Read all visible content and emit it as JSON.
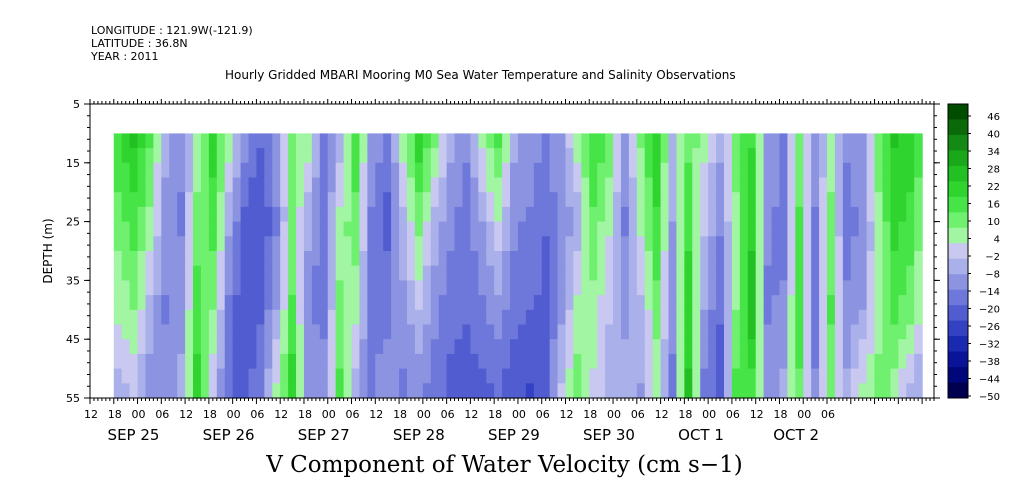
{
  "header": {
    "longitude": "LONGITUDE : 121.9W(-121.9)",
    "latitude": "LATITUDE : 36.8N",
    "year": "YEAR : 2011"
  },
  "chart_data": {
    "type": "heatmap",
    "title": "Hourly Gridded MBARI Mooring M0 Sea Water Temperature and Salinity Observations",
    "xlabel": "V Component of Water Velocity (cm s−1)",
    "ylabel": "DEPTH (m)",
    "ylim": [
      55,
      5
    ],
    "y_ticks": [
      "5",
      "15",
      "25",
      "35",
      "45",
      "55"
    ],
    "x_hour_ticks": [
      "12",
      "18",
      "00",
      "06",
      "12",
      "18",
      "00",
      "06",
      "12",
      "18",
      "00",
      "06",
      "12",
      "18",
      "00",
      "06",
      "12",
      "18",
      "00",
      "06",
      "12",
      "18",
      "00",
      "06",
      "12",
      "18",
      "00",
      "06",
      "12",
      "18",
      "00",
      "06"
    ],
    "x_date_labels": [
      "SEP 25",
      "SEP 26",
      "SEP 27",
      "SEP 28",
      "SEP 29",
      "SEP 30",
      "OCT  1",
      "OCT  2"
    ],
    "data_depth_range_m": [
      10,
      55
    ],
    "data_time_range_hours_from_sep25_12": [
      6,
      210
    ],
    "colorbar": {
      "labels": [
        "46",
        "40",
        "34",
        "28",
        "22",
        "16",
        "10",
        "4",
        "−2",
        "−8",
        "−14",
        "−20",
        "−26",
        "−32",
        "−38",
        "−44",
        "−50"
      ],
      "range": [
        -50,
        50
      ],
      "colors_high_to_low": [
        "#004d00",
        "#0a6a0a",
        "#138a13",
        "#1aa81a",
        "#22c022",
        "#2fd42f",
        "#46e446",
        "#6ff06f",
        "#a2f5a2",
        "#c8c8f0",
        "#aab0ea",
        "#8c94e2",
        "#6e78da",
        "#505cd0",
        "#3242c2",
        "#1a2ab0",
        "#0a1498",
        "#00077a",
        "#000050"
      ]
    },
    "data_columns": [
      {
        "t": 6,
        "v": [
          18,
          10,
          4,
          -4
        ]
      },
      {
        "t": 10,
        "v": [
          24,
          16,
          8,
          -2
        ]
      },
      {
        "t": 14,
        "v": [
          14,
          6,
          -4,
          -10
        ]
      },
      {
        "t": 18,
        "v": [
          -6,
          -10,
          -14,
          -10
        ]
      },
      {
        "t": 22,
        "v": [
          -12,
          -14,
          -10,
          -6
        ]
      },
      {
        "t": 26,
        "v": [
          4,
          10,
          16,
          20
        ]
      },
      {
        "t": 30,
        "v": [
          20,
          16,
          8,
          -2
        ]
      },
      {
        "t": 34,
        "v": [
          4,
          -6,
          -14,
          -18
        ]
      },
      {
        "t": 38,
        "v": [
          -12,
          -20,
          -24,
          -20
        ]
      },
      {
        "t": 42,
        "v": [
          -18,
          -24,
          -20,
          -14
        ]
      },
      {
        "t": 46,
        "v": [
          -10,
          -14,
          -8,
          4
        ]
      },
      {
        "t": 50,
        "v": [
          10,
          8,
          14,
          22
        ]
      },
      {
        "t": 54,
        "v": [
          4,
          -6,
          -12,
          -8
        ]
      },
      {
        "t": 58,
        "v": [
          -14,
          -18,
          -16,
          -10
        ]
      },
      {
        "t": 62,
        "v": [
          -4,
          4,
          10,
          14
        ]
      },
      {
        "t": 66,
        "v": [
          16,
          12,
          4,
          -4
        ]
      },
      {
        "t": 70,
        "v": [
          -8,
          -14,
          -18,
          -14
        ]
      },
      {
        "t": 74,
        "v": [
          -16,
          -20,
          -16,
          -8
        ]
      },
      {
        "t": 78,
        "v": [
          4,
          -4,
          -10,
          -14
        ]
      },
      {
        "t": 82,
        "v": [
          20,
          10,
          -2,
          -12
        ]
      },
      {
        "t": 86,
        "v": [
          8,
          -4,
          -12,
          -16
        ]
      },
      {
        "t": 90,
        "v": [
          -6,
          -12,
          -16,
          -20
        ]
      },
      {
        "t": 94,
        "v": [
          -12,
          -16,
          -18,
          -22
        ]
      },
      {
        "t": 98,
        "v": [
          4,
          -8,
          -14,
          -20
        ]
      },
      {
        "t": 102,
        "v": [
          14,
          2,
          -10,
          -18
        ]
      },
      {
        "t": 106,
        "v": [
          -6,
          -12,
          -16,
          -22
        ]
      },
      {
        "t": 110,
        "v": [
          -10,
          -14,
          -18,
          -24
        ]
      },
      {
        "t": 114,
        "v": [
          -14,
          -18,
          -20,
          -20
        ]
      },
      {
        "t": 118,
        "v": [
          -8,
          -12,
          -10,
          -2
        ]
      },
      {
        "t": 122,
        "v": [
          4,
          -6,
          4,
          10
        ]
      },
      {
        "t": 126,
        "v": [
          18,
          12,
          6,
          2
        ]
      },
      {
        "t": 130,
        "v": [
          10,
          4,
          -2,
          -6
        ]
      },
      {
        "t": 134,
        "v": [
          -10,
          -14,
          -10,
          -4
        ]
      },
      {
        "t": 138,
        "v": [
          8,
          4,
          -4,
          -8
        ]
      },
      {
        "t": 142,
        "v": [
          22,
          18,
          10,
          4
        ]
      },
      {
        "t": 146,
        "v": [
          -4,
          -8,
          -12,
          -14
        ]
      },
      {
        "t": 150,
        "v": [
          12,
          16,
          22,
          24
        ]
      },
      {
        "t": 154,
        "v": [
          4,
          -2,
          -8,
          -14
        ]
      },
      {
        "t": 158,
        "v": [
          -6,
          -12,
          -18,
          -20
        ]
      },
      {
        "t": 162,
        "v": [
          10,
          6,
          8,
          14
        ]
      },
      {
        "t": 166,
        "v": [
          18,
          22,
          28,
          16
        ]
      },
      {
        "t": 170,
        "v": [
          -8,
          -12,
          -14,
          -10
        ]
      },
      {
        "t": 174,
        "v": [
          -14,
          -16,
          -12,
          -6
        ]
      },
      {
        "t": 178,
        "v": [
          10,
          14,
          18,
          12
        ]
      },
      {
        "t": 182,
        "v": [
          -10,
          -14,
          -16,
          -12
        ]
      },
      {
        "t": 186,
        "v": [
          4,
          10,
          14,
          8
        ]
      },
      {
        "t": 190,
        "v": [
          -12,
          -16,
          -12,
          -6
        ]
      },
      {
        "t": 194,
        "v": [
          -8,
          -12,
          -8,
          4
        ]
      },
      {
        "t": 198,
        "v": [
          10,
          6,
          4,
          10
        ]
      },
      {
        "t": 202,
        "v": [
          24,
          20,
          14,
          6
        ]
      },
      {
        "t": 206,
        "v": [
          22,
          16,
          10,
          -4
        ]
      },
      {
        "t": 210,
        "v": [
          10,
          4,
          -2,
          -8
        ]
      }
    ],
    "data_column_depths_m": [
      12,
      25,
      40,
      53
    ]
  }
}
